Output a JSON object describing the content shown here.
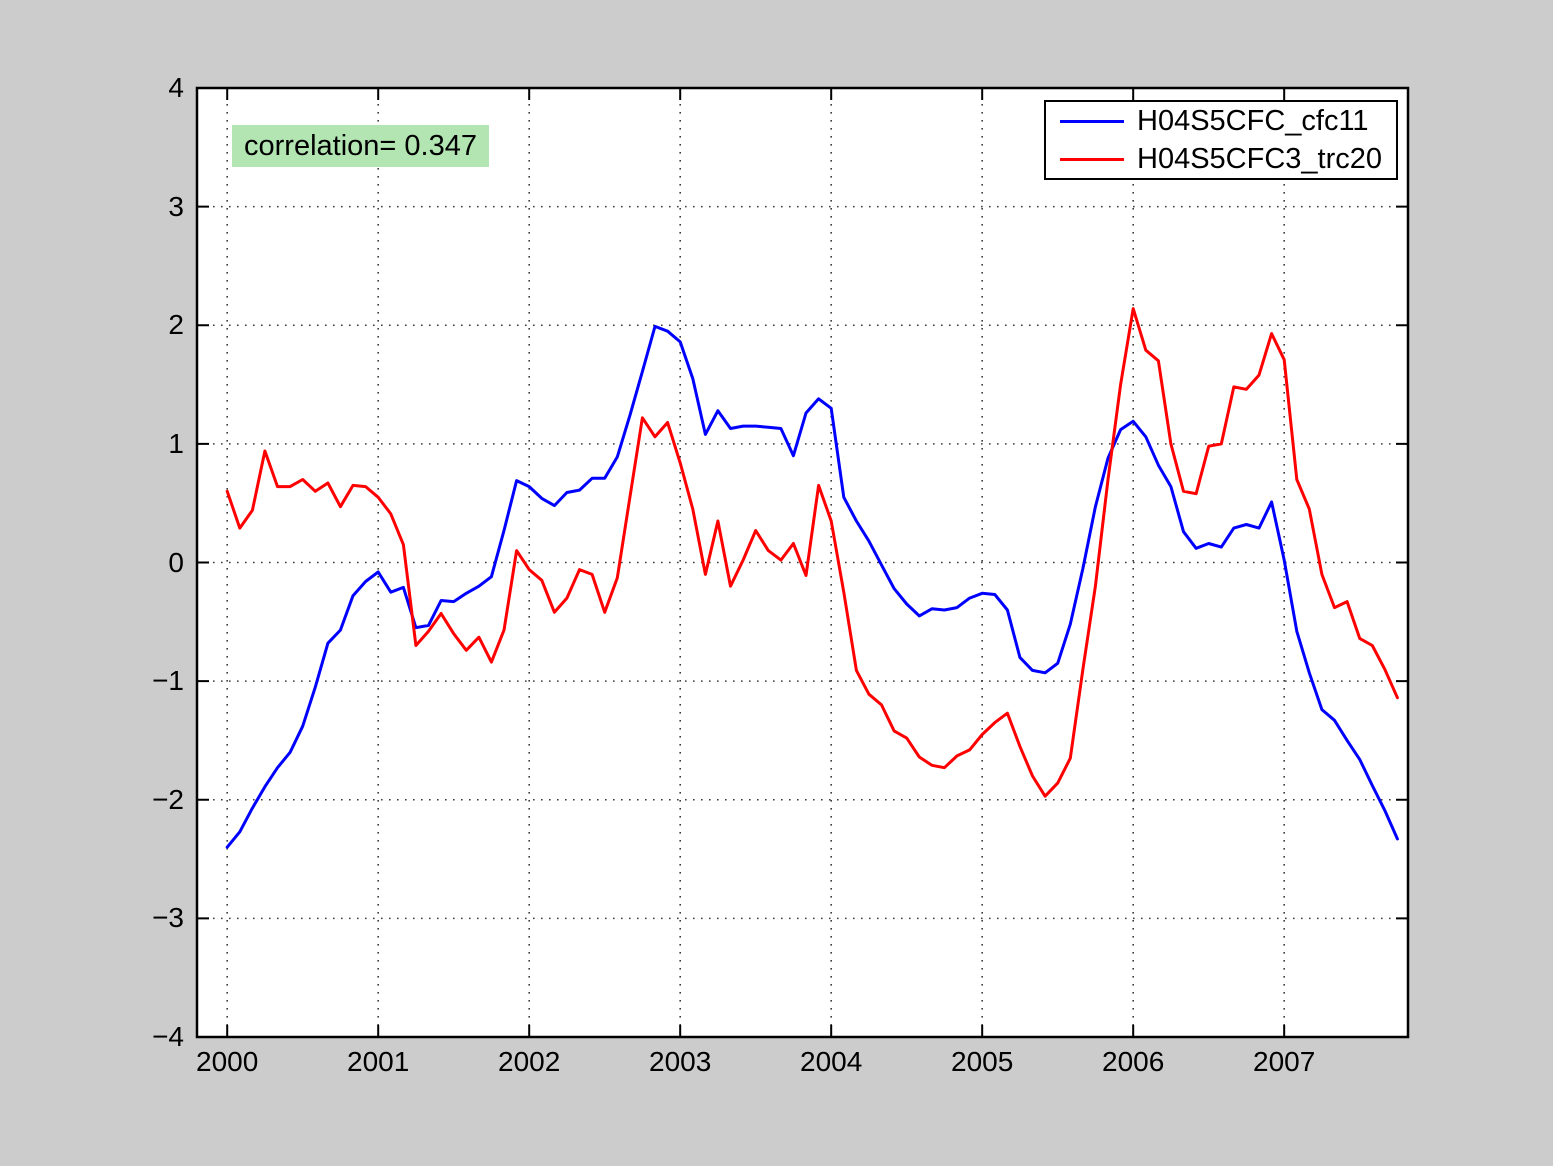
{
  "figure": {
    "background_color": "#cccccc",
    "plot_background_color": "#ffffff"
  },
  "annotation": {
    "text": "correlation= 0.347",
    "background": "#b2e5b2"
  },
  "legend": {
    "position": "top-right",
    "entries": [
      {
        "label": "H04S5CFC_cfc11",
        "color": "#0000ff"
      },
      {
        "label": "H04S5CFC3_trc20",
        "color": "#ff0000"
      }
    ]
  },
  "chart_data": {
    "type": "line",
    "title": "",
    "xlabel": "",
    "ylabel": "",
    "grid": "dotted",
    "legend_position": "top-right",
    "xlim": [
      1999.8,
      2007.82
    ],
    "ylim": [
      -4,
      4
    ],
    "x_ticks": [
      2000,
      2001,
      2002,
      2003,
      2004,
      2005,
      2006,
      2007
    ],
    "x_tick_labels": [
      "2000",
      "2001",
      "2002",
      "2003",
      "2004",
      "2005",
      "2006",
      "2007"
    ],
    "y_ticks": [
      -4,
      -3,
      -2,
      -1,
      0,
      1,
      2,
      3,
      4
    ],
    "y_tick_labels": [
      "−4",
      "−3",
      "−2",
      "−1",
      "0",
      "1",
      "2",
      "3",
      "4"
    ],
    "x_unit": "decimal year, monthly samples",
    "series": [
      {
        "name": "H04S5CFC_cfc11",
        "color": "#0000ff",
        "x0": 2000.0,
        "dx": 0.0833333,
        "values": [
          -2.4,
          -2.27,
          -2.07,
          -1.89,
          -1.73,
          -1.6,
          -1.38,
          -1.05,
          -0.68,
          -0.57,
          -0.28,
          -0.16,
          -0.08,
          -0.25,
          -0.21,
          -0.55,
          -0.53,
          -0.32,
          -0.33,
          -0.26,
          -0.2,
          -0.12,
          0.27,
          0.69,
          0.64,
          0.54,
          0.48,
          0.59,
          0.61,
          0.71,
          0.71,
          0.89,
          1.24,
          1.61,
          1.99,
          1.95,
          1.86,
          1.55,
          1.08,
          1.28,
          1.13,
          1.15,
          1.15,
          1.14,
          1.13,
          0.9,
          1.26,
          1.38,
          1.3,
          0.55,
          0.35,
          0.18,
          -0.02,
          -0.22,
          -0.35,
          -0.45,
          -0.39,
          -0.4,
          -0.38,
          -0.3,
          -0.26,
          -0.27,
          -0.4,
          -0.8,
          -0.91,
          -0.93,
          -0.85,
          -0.52,
          -0.05,
          0.47,
          0.88,
          1.12,
          1.19,
          1.06,
          0.82,
          0.64,
          0.26,
          0.12,
          0.16,
          0.13,
          0.29,
          0.32,
          0.29,
          0.51,
          0.02,
          -0.58,
          -0.93,
          -1.24,
          -1.33,
          -1.5,
          -1.66,
          -1.88,
          -2.09,
          -2.33
        ]
      },
      {
        "name": "H04S5CFC3_trc20",
        "color": "#ff0000",
        "x0": 2000.0,
        "dx": 0.0833333,
        "values": [
          0.6,
          0.29,
          0.44,
          0.94,
          0.64,
          0.64,
          0.7,
          0.6,
          0.67,
          0.47,
          0.65,
          0.64,
          0.55,
          0.41,
          0.15,
          -0.7,
          -0.58,
          -0.43,
          -0.6,
          -0.74,
          -0.63,
          -0.84,
          -0.57,
          0.1,
          -0.06,
          -0.15,
          -0.42,
          -0.3,
          -0.06,
          -0.1,
          -0.42,
          -0.13,
          0.55,
          1.22,
          1.06,
          1.18,
          0.84,
          0.45,
          -0.1,
          0.35,
          -0.2,
          0.02,
          0.27,
          0.1,
          0.02,
          0.16,
          -0.11,
          0.65,
          0.35,
          -0.25,
          -0.91,
          -1.11,
          -1.2,
          -1.42,
          -1.48,
          -1.64,
          -1.71,
          -1.73,
          -1.63,
          -1.58,
          -1.45,
          -1.35,
          -1.27,
          -1.55,
          -1.8,
          -1.97,
          -1.86,
          -1.65,
          -0.9,
          -0.2,
          0.7,
          1.5,
          2.14,
          1.79,
          1.7,
          1.0,
          0.6,
          0.58,
          0.98,
          1.0,
          1.48,
          1.46,
          1.58,
          1.93,
          1.71,
          0.7,
          0.45,
          -0.1,
          -0.38,
          -0.33,
          -0.64,
          -0.7,
          -0.9,
          -1.14
        ]
      }
    ]
  }
}
